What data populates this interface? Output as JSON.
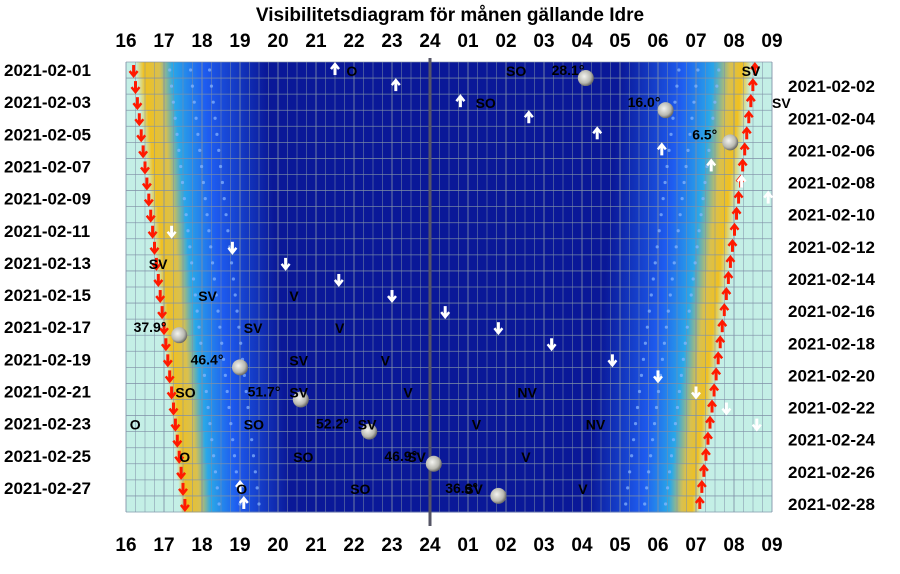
{
  "chart_data": {
    "type": "heatmap",
    "title": "Visibilitetsdiagram för månen gällande Idre",
    "x_ticks": [
      "16",
      "17",
      "18",
      "19",
      "20",
      "21",
      "22",
      "23",
      "24",
      "01",
      "02",
      "03",
      "04",
      "05",
      "06",
      "07",
      "08",
      "09"
    ],
    "x_range_hours": [
      16,
      33
    ],
    "dates_left": [
      "2021-02-01",
      "2021-02-03",
      "2021-02-05",
      "2021-02-07",
      "2021-02-09",
      "2021-02-11",
      "2021-02-13",
      "2021-02-15",
      "2021-02-17",
      "2021-02-19",
      "2021-02-21",
      "2021-02-23",
      "2021-02-25",
      "2021-02-27"
    ],
    "dates_right": [
      "2021-02-02",
      "2021-02-04",
      "2021-02-06",
      "2021-02-08",
      "2021-02-10",
      "2021-02-12",
      "2021-02-14",
      "2021-02-16",
      "2021-02-18",
      "2021-02-20",
      "2021-02-22",
      "2021-02-24",
      "2021-02-26",
      "2021-02-28"
    ],
    "grid": true,
    "colors": {
      "day": "#c4efe6",
      "twilight_warm": "#f0c020",
      "twilight_mid": "#2aa8e8",
      "night_light": "#1e5cf0",
      "night_deep": "#0a1898",
      "grid": "#7f8fa6",
      "sun_arrow": "#ff1a00",
      "moon_arrow": "#ffffff",
      "midnight_line": "#555566"
    },
    "moon_altitudes": [
      {
        "label": "28.1°",
        "day": 0
      },
      {
        "label": "16.0°",
        "day": 2
      },
      {
        "label": "6.5°",
        "day": 4
      },
      {
        "label": "37.9°",
        "day": 16
      },
      {
        "label": "46.4°",
        "day": 18
      },
      {
        "label": "51.7°",
        "day": 20
      },
      {
        "label": "52.2°",
        "day": 22
      },
      {
        "label": "46.9°",
        "day": 24
      },
      {
        "label": "36.6°",
        "day": 26
      }
    ],
    "direction_labels": [
      {
        "text": "O",
        "day": 0
      },
      {
        "text": "SO",
        "day": 0
      },
      {
        "text": "SV",
        "day": 0
      },
      {
        "text": "SO",
        "day": 2
      },
      {
        "text": "SV",
        "day": 2
      },
      {
        "text": "SV",
        "day": 12
      },
      {
        "text": "SV",
        "day": 14
      },
      {
        "text": "V",
        "day": 14
      },
      {
        "text": "SV",
        "day": 16
      },
      {
        "text": "V",
        "day": 16
      },
      {
        "text": "SV",
        "day": 18
      },
      {
        "text": "V",
        "day": 18
      },
      {
        "text": "SO",
        "day": 20
      },
      {
        "text": "SV",
        "day": 20
      },
      {
        "text": "V",
        "day": 20
      },
      {
        "text": "NV",
        "day": 20
      },
      {
        "text": "O",
        "day": 22
      },
      {
        "text": "SO",
        "day": 22
      },
      {
        "text": "SV",
        "day": 22
      },
      {
        "text": "V",
        "day": 22
      },
      {
        "text": "NV",
        "day": 22
      },
      {
        "text": "O",
        "day": 24
      },
      {
        "text": "SO",
        "day": 24
      },
      {
        "text": "SV",
        "day": 24
      },
      {
        "text": "V",
        "day": 24
      },
      {
        "text": "O",
        "day": 26
      },
      {
        "text": "SO",
        "day": 26
      },
      {
        "text": "SV",
        "day": 26
      },
      {
        "text": "V",
        "day": 26
      }
    ]
  }
}
